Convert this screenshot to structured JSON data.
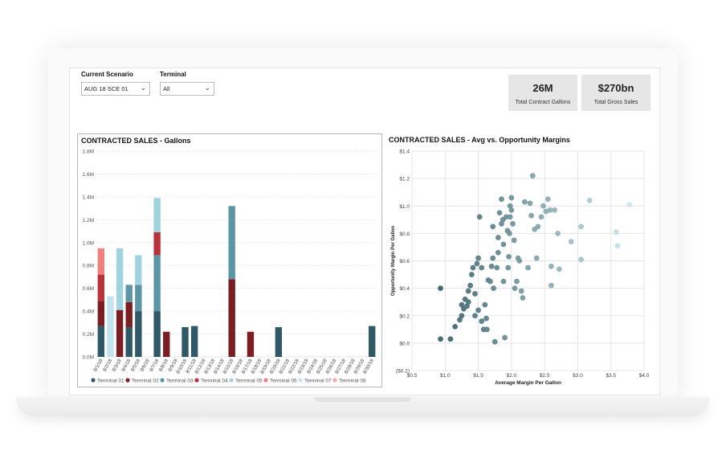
{
  "filters": {
    "scenario": {
      "label": "Current Scenario",
      "value": "AUG 18 SCE 01"
    },
    "terminal": {
      "label": "Terminal",
      "value": "All"
    }
  },
  "kpis": [
    {
      "value": "26M",
      "label": "Total Contract Gallons"
    },
    {
      "value": "$270bn",
      "label": "Total Gross Sales"
    }
  ],
  "chart_data": [
    {
      "type": "bar",
      "stacked": true,
      "title": "CONTRACTED SALES - Gallons",
      "xlabel": "",
      "ylabel": "",
      "ylim": [
        0,
        1800000
      ],
      "yticks": [
        "0.0M",
        "0.2M",
        "0.4M",
        "0.6M",
        "0.8M",
        "1.0M",
        "1.2M",
        "1.4M",
        "1.6M",
        "1.8M"
      ],
      "grid": true,
      "legend": "bottom",
      "categories": [
        "8/1/18",
        "8/2/18",
        "8/3/18",
        "8/4/18",
        "8/5/18",
        "8/6/18",
        "8/7/18",
        "8/8/18",
        "8/9/18",
        "8/10/18",
        "8/11/18",
        "8/12/18",
        "8/13/18",
        "8/14/18",
        "8/15/18",
        "8/16/18",
        "8/17/18",
        "8/18/18",
        "8/19/18",
        "8/20/18",
        "8/21/18",
        "8/22/18",
        "8/23/18",
        "8/24/18",
        "8/25/18",
        "8/26/18",
        "8/27/18",
        "8/28/18",
        "8/29/18",
        "8/30/18"
      ],
      "series": [
        {
          "name": "Terminal 01",
          "color": "#2f5966",
          "values": [
            270000,
            0,
            0,
            260000,
            400000,
            0,
            400000,
            0,
            0,
            260000,
            270000,
            0,
            0,
            0,
            0,
            0,
            0,
            0,
            0,
            260000,
            0,
            0,
            0,
            0,
            0,
            0,
            0,
            0,
            0,
            270000
          ]
        },
        {
          "name": "Terminal 02",
          "color": "#7a1e23",
          "values": [
            220000,
            0,
            410000,
            220000,
            0,
            0,
            0,
            220000,
            0,
            0,
            0,
            0,
            0,
            0,
            680000,
            0,
            220000,
            0,
            0,
            0,
            0,
            0,
            0,
            0,
            0,
            0,
            0,
            0,
            0,
            0
          ]
        },
        {
          "name": "Terminal 03",
          "color": "#5c96a6",
          "values": [
            0,
            0,
            0,
            150000,
            230000,
            0,
            490000,
            0,
            0,
            0,
            0,
            0,
            0,
            0,
            640000,
            0,
            0,
            0,
            0,
            0,
            0,
            0,
            0,
            0,
            0,
            0,
            0,
            0,
            0,
            0
          ]
        },
        {
          "name": "Terminal 04",
          "color": "#b8323a",
          "values": [
            230000,
            0,
            0,
            0,
            0,
            0,
            200000,
            0,
            0,
            0,
            0,
            0,
            0,
            0,
            0,
            0,
            0,
            0,
            0,
            0,
            0,
            0,
            0,
            0,
            0,
            0,
            0,
            0,
            0,
            0
          ]
        },
        {
          "name": "Terminal 05",
          "color": "#9fd3de",
          "values": [
            0,
            0,
            540000,
            0,
            260000,
            0,
            300000,
            0,
            0,
            0,
            0,
            0,
            0,
            0,
            0,
            0,
            0,
            0,
            0,
            0,
            0,
            0,
            0,
            0,
            0,
            0,
            0,
            0,
            0,
            0
          ]
        },
        {
          "name": "Terminal 06",
          "color": "#ef8080",
          "values": [
            230000,
            0,
            0,
            0,
            0,
            0,
            0,
            0,
            0,
            0,
            0,
            0,
            0,
            0,
            0,
            0,
            0,
            0,
            0,
            0,
            0,
            0,
            0,
            0,
            0,
            0,
            0,
            0,
            0,
            0
          ]
        },
        {
          "name": "Terminal 07",
          "color": "#c3e4ec",
          "values": [
            0,
            530000,
            0,
            0,
            0,
            0,
            0,
            0,
            0,
            0,
            0,
            0,
            0,
            0,
            0,
            0,
            0,
            0,
            0,
            0,
            0,
            0,
            0,
            0,
            0,
            0,
            0,
            0,
            0,
            0
          ]
        },
        {
          "name": "Terminal 08",
          "color": "#f5a9a9",
          "values": [
            0,
            0,
            0,
            0,
            0,
            0,
            0,
            0,
            0,
            0,
            0,
            0,
            0,
            0,
            0,
            0,
            0,
            0,
            0,
            0,
            0,
            0,
            0,
            0,
            0,
            0,
            0,
            0,
            0,
            0
          ]
        }
      ]
    },
    {
      "type": "scatter",
      "title": "CONTRACTED SALES - Avg vs. Opportunity Margins",
      "xlabel": "Average Margin Per Gallon",
      "ylabel": "Opportunity Margin Per Gallon",
      "xlim": [
        0.5,
        4.0
      ],
      "ylim": [
        -0.2,
        1.4
      ],
      "xticks": [
        "$0.5",
        "$1.0",
        "$1.5",
        "$2.0",
        "$2.5",
        "$3.0",
        "$3.5",
        "$4.0"
      ],
      "yticks": [
        "($0.2)",
        "$0.0",
        "$0.2",
        "$0.4",
        "$0.6",
        "$0.8",
        "$1.0",
        "$1.2",
        "$1.4"
      ],
      "grid": true,
      "points": [
        [
          0.93,
          0.4
        ],
        [
          0.93,
          0.03
        ],
        [
          1.08,
          0.03
        ],
        [
          1.15,
          0.12
        ],
        [
          1.22,
          0.17
        ],
        [
          1.25,
          0.2
        ],
        [
          1.28,
          0.25
        ],
        [
          1.25,
          0.28
        ],
        [
          1.3,
          0.32
        ],
        [
          1.33,
          0.27
        ],
        [
          1.35,
          0.3
        ],
        [
          1.35,
          0.38
        ],
        [
          1.38,
          0.42
        ],
        [
          1.4,
          0.5
        ],
        [
          1.42,
          0.55
        ],
        [
          1.45,
          0.36
        ],
        [
          1.45,
          0.2
        ],
        [
          1.48,
          0.58
        ],
        [
          1.5,
          0.62
        ],
        [
          1.5,
          0.24
        ],
        [
          1.52,
          0.92
        ],
        [
          1.55,
          0.55
        ],
        [
          1.55,
          0.16
        ],
        [
          1.58,
          0.1
        ],
        [
          1.6,
          0.28
        ],
        [
          1.62,
          0.18
        ],
        [
          1.63,
          0.1
        ],
        [
          1.65,
          0.46
        ],
        [
          1.68,
          0.45
        ],
        [
          1.7,
          0.56
        ],
        [
          1.72,
          0.85
        ],
        [
          1.72,
          0.62
        ],
        [
          1.73,
          0.4
        ],
        [
          1.75,
          0.01
        ],
        [
          1.78,
          0.55
        ],
        [
          1.8,
          0.66
        ],
        [
          1.8,
          0.77
        ],
        [
          1.82,
          0.95
        ],
        [
          1.85,
          0.87
        ],
        [
          1.85,
          1.05
        ],
        [
          1.87,
          0.9
        ],
        [
          1.88,
          0.72
        ],
        [
          1.88,
          0.45
        ],
        [
          1.9,
          0.04
        ],
        [
          1.92,
          0.92
        ],
        [
          1.94,
          0.82
        ],
        [
          1.95,
          0.55
        ],
        [
          1.96,
          0.63
        ],
        [
          1.97,
          0.8
        ],
        [
          1.98,
          0.92
        ],
        [
          1.98,
          1.0
        ],
        [
          2.0,
          1.06
        ],
        [
          2.0,
          0.97
        ],
        [
          2.02,
          0.87
        ],
        [
          2.04,
          0.75
        ],
        [
          2.05,
          0.4
        ],
        [
          2.08,
          0.45
        ],
        [
          2.1,
          0.62
        ],
        [
          2.12,
          0.6
        ],
        [
          2.15,
          0.38
        ],
        [
          2.17,
          0.33
        ],
        [
          2.2,
          1.03
        ],
        [
          2.25,
          0.55
        ],
        [
          2.28,
          1.02
        ],
        [
          2.3,
          0.93
        ],
        [
          2.32,
          1.22
        ],
        [
          2.35,
          0.83
        ],
        [
          2.38,
          0.62
        ],
        [
          2.4,
          0.85
        ],
        [
          2.45,
          0.92
        ],
        [
          2.48,
          1.0
        ],
        [
          2.52,
          0.96
        ],
        [
          2.55,
          1.05
        ],
        [
          2.58,
          0.97
        ],
        [
          2.6,
          0.56
        ],
        [
          2.6,
          0.42
        ],
        [
          2.65,
          0.97
        ],
        [
          2.7,
          0.8
        ],
        [
          2.72,
          0.54
        ],
        [
          2.9,
          0.74
        ],
        [
          3.05,
          0.61
        ],
        [
          3.05,
          0.85
        ],
        [
          3.18,
          1.04
        ],
        [
          3.58,
          0.81
        ],
        [
          3.6,
          0.71
        ],
        [
          3.78,
          1.01
        ]
      ]
    }
  ]
}
